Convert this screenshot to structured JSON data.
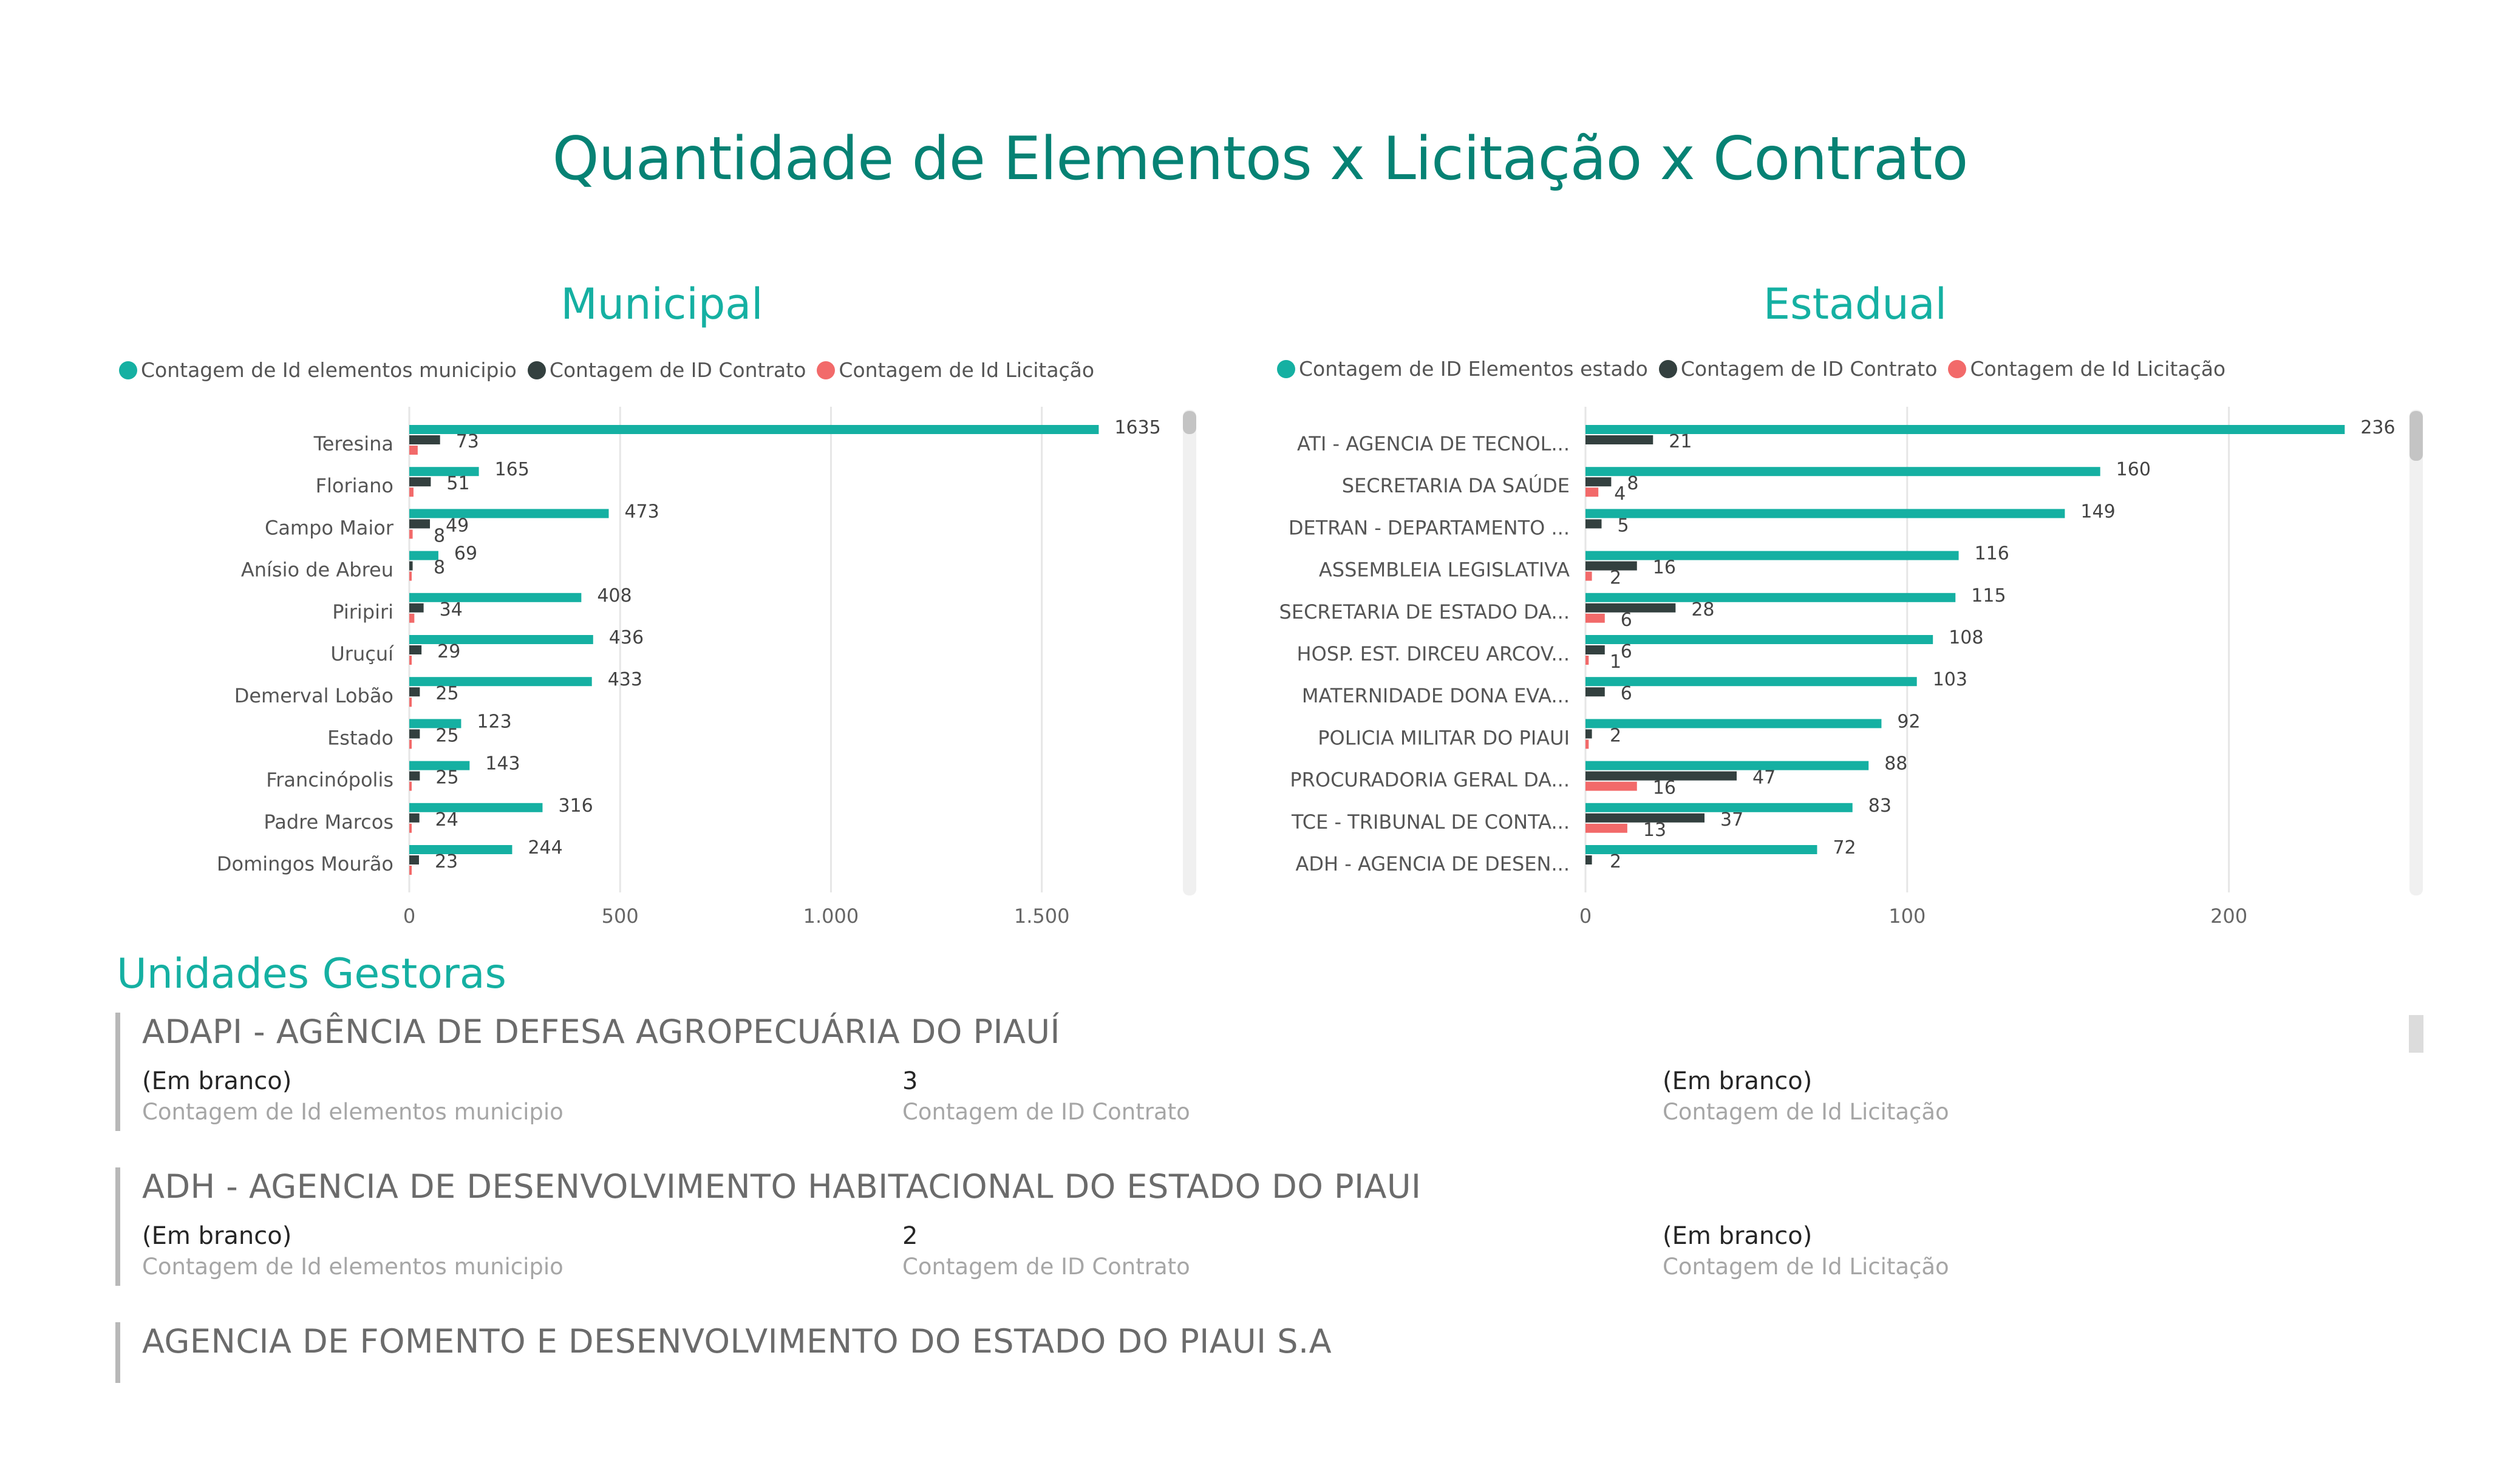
{
  "title": "Quantidade de Elementos x Licitação x Contrato",
  "colors": {
    "elements": "#15B0A2",
    "contrato": "#33403F",
    "licitacao": "#F26A6A",
    "title": "#068274"
  },
  "panels": {
    "municipal": {
      "title": "Municipal",
      "legend": [
        "Contagem de Id elementos municipio",
        "Contagem de ID Contrato",
        "Contagem de Id Licitação"
      ],
      "axis_ticks": [
        "0",
        "500",
        "1.000",
        "1.500"
      ]
    },
    "estadual": {
      "title": "Estadual",
      "legend": [
        "Contagem de ID Elementos estado",
        "Contagem de ID Contrato",
        "Contagem de Id Licitação"
      ],
      "axis_ticks": [
        "0",
        "100",
        "200"
      ]
    }
  },
  "chart_data": [
    {
      "type": "bar",
      "orientation": "horizontal",
      "title": "Municipal",
      "categories": [
        "Teresina",
        "Floriano",
        "Campo Maior",
        "Anísio de Abreu",
        "Piripiri",
        "Uruçuí",
        "Demerval Lobão",
        "Estado",
        "Francinópolis",
        "Padre Marcos",
        "Domingos Mourão"
      ],
      "series": [
        {
          "name": "Contagem de Id elementos municipio",
          "values": [
            1635,
            165,
            473,
            69,
            408,
            436,
            433,
            123,
            143,
            316,
            244
          ]
        },
        {
          "name": "Contagem de ID Contrato",
          "values": [
            73,
            51,
            49,
            8,
            34,
            29,
            25,
            25,
            25,
            24,
            23
          ]
        },
        {
          "name": "Contagem de Id Licitação",
          "values": [
            20,
            10,
            8,
            3,
            12,
            5,
            4,
            4,
            3,
            3,
            3
          ]
        }
      ],
      "value_labels": [
        [
          "1635",
          "165",
          "473",
          "69",
          "408",
          "436",
          "433",
          "123",
          "143",
          "316",
          "244"
        ],
        [
          "73",
          "51",
          "49",
          "8",
          "34",
          "29",
          "25",
          "25",
          "25",
          "24",
          "23"
        ],
        [
          "",
          "",
          "8",
          "",
          "",
          "",
          "",
          "",
          "",
          "",
          ""
        ]
      ],
      "xlim": [
        0,
        1800
      ],
      "grid": true,
      "legend_position": "top-left"
    },
    {
      "type": "bar",
      "orientation": "horizontal",
      "title": "Estadual",
      "categories": [
        "ATI - AGENCIA DE TECNOL...",
        "SECRETARIA DA SAÚDE",
        "DETRAN - DEPARTAMENTO ...",
        "ASSEMBLEIA LEGISLATIVA",
        "SECRETARIA DE ESTADO DA...",
        "HOSP. EST. DIRCEU ARCOV...",
        "MATERNIDADE DONA EVA...",
        "POLICIA MILITAR DO PIAUI",
        "PROCURADORIA GERAL DA...",
        "TCE - TRIBUNAL DE CONTA...",
        "ADH - AGENCIA DE DESEN..."
      ],
      "series": [
        {
          "name": "Contagem de ID Elementos estado",
          "values": [
            236,
            160,
            149,
            116,
            115,
            108,
            103,
            92,
            88,
            83,
            72
          ]
        },
        {
          "name": "Contagem de ID Contrato",
          "values": [
            21,
            8,
            5,
            16,
            28,
            6,
            6,
            2,
            47,
            37,
            2
          ]
        },
        {
          "name": "Contagem de Id Licitação",
          "values": [
            0,
            4,
            0,
            2,
            6,
            1,
            0,
            1,
            16,
            13,
            0
          ]
        }
      ],
      "value_labels": [
        [
          "236",
          "160",
          "149",
          "116",
          "115",
          "108",
          "103",
          "92",
          "88",
          "83",
          "72"
        ],
        [
          "21",
          "8",
          "5",
          "16",
          "28",
          "6",
          "6",
          "2",
          "47",
          "37",
          "2"
        ],
        [
          "",
          "4",
          "",
          "2",
          "6",
          "1",
          "",
          "",
          "16",
          "13",
          ""
        ]
      ],
      "xlim": [
        0,
        255
      ],
      "grid": true,
      "legend_position": "top-left"
    }
  ],
  "units_section": {
    "title": "Unidades Gestoras",
    "cards": [
      {
        "name": "ADAPI - AGÊNCIA DE DEFESA AGROPECUÁRIA DO PIAUÍ",
        "fields": [
          {
            "value": "(Em branco)",
            "label": "Contagem de Id elementos municipio"
          },
          {
            "value": "3",
            "label": "Contagem de ID Contrato"
          },
          {
            "value": "(Em branco)",
            "label": "Contagem de Id Licitação"
          }
        ]
      },
      {
        "name": "ADH - AGENCIA DE DESENVOLVIMENTO HABITACIONAL DO ESTADO DO PIAUI",
        "fields": [
          {
            "value": "(Em branco)",
            "label": "Contagem de Id elementos municipio"
          },
          {
            "value": "2",
            "label": "Contagem de ID Contrato"
          },
          {
            "value": "(Em branco)",
            "label": "Contagem de Id Licitação"
          }
        ]
      },
      {
        "name": "AGENCIA DE FOMENTO E DESENVOLVIMENTO DO ESTADO DO PIAUI S.A",
        "fields": []
      }
    ]
  }
}
